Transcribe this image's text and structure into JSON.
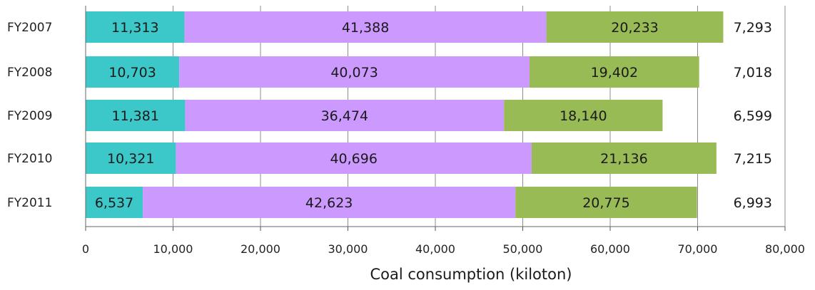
{
  "chart_data": {
    "type": "bar",
    "orientation": "horizontal",
    "stacked": true,
    "title": "",
    "xlabel": "Coal consumption (kiloton)",
    "ylabel": "",
    "xlim": [
      0,
      80000
    ],
    "x_ticks": [
      "0",
      "10,000",
      "20,000",
      "30,000",
      "40,000",
      "50,000",
      "60,000",
      "70,000",
      "80,000"
    ],
    "grid": "vertical",
    "legend": "none",
    "categories": [
      "FY2007",
      "FY2008",
      "FY2009",
      "FY2010",
      "FY2011"
    ],
    "series": [
      {
        "color": "#3cc8c8",
        "values": [
          11313,
          10703,
          11381,
          10321,
          6537
        ],
        "labels": [
          "11,313",
          "10,703",
          "11,381",
          "10,321",
          "6,537"
        ]
      },
      {
        "color": "#cc99ff",
        "values": [
          41388,
          40073,
          36474,
          40696,
          42623
        ],
        "labels": [
          "41,388",
          "40,073",
          "36,474",
          "40,696",
          "42,623"
        ]
      },
      {
        "color": "#99bb55",
        "values": [
          20233,
          19402,
          18140,
          21136,
          20775
        ],
        "labels": [
          "20,233",
          "19,402",
          "18,140",
          "21,136",
          "20,775"
        ]
      }
    ],
    "end_labels": [
      "7,293",
      "7,018",
      "6,599",
      "7,215",
      "6,993"
    ]
  }
}
